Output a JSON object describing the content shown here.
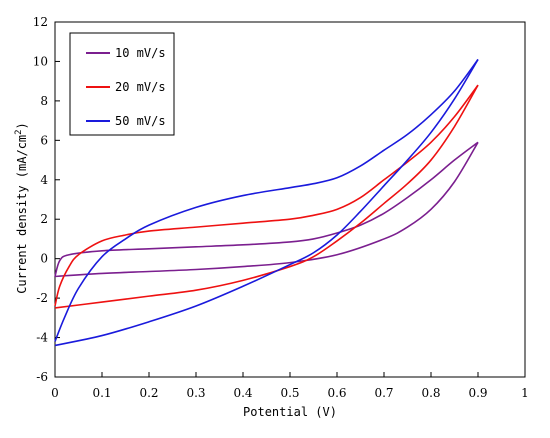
{
  "chart_data": {
    "type": "line",
    "title": "",
    "xlabel": "Potential (V)",
    "ylabel": "Current density (mA/cm",
    "ylabel_sup": "2",
    "ylabel_end": ")",
    "xlim": [
      0,
      1
    ],
    "ylim": [
      -6,
      12
    ],
    "xticks": [
      "0",
      "0.1",
      "0.2",
      "0.3",
      "0.4",
      "0.5",
      "0.6",
      "0.7",
      "0.8",
      "0.9",
      "1"
    ],
    "yticks": [
      "-6",
      "-4",
      "-2",
      "0",
      "2",
      "4",
      "6",
      "8",
      "10",
      "12"
    ],
    "grid": false,
    "legend_position": "top-left",
    "series": [
      {
        "name": "10 mV/s",
        "color": "#7b1f8f",
        "upper": [
          [
            0,
            -0.9
          ],
          [
            0.01,
            -0.1
          ],
          [
            0.03,
            0.2
          ],
          [
            0.1,
            0.4
          ],
          [
            0.2,
            0.5
          ],
          [
            0.3,
            0.6
          ],
          [
            0.4,
            0.7
          ],
          [
            0.5,
            0.85
          ],
          [
            0.55,
            1.0
          ],
          [
            0.6,
            1.3
          ],
          [
            0.65,
            1.7
          ],
          [
            0.7,
            2.3
          ],
          [
            0.75,
            3.1
          ],
          [
            0.8,
            4.0
          ],
          [
            0.85,
            5.0
          ],
          [
            0.9,
            5.9
          ]
        ],
        "lower": [
          [
            0,
            -0.9
          ],
          [
            0.1,
            -0.75
          ],
          [
            0.2,
            -0.65
          ],
          [
            0.3,
            -0.55
          ],
          [
            0.4,
            -0.4
          ],
          [
            0.5,
            -0.2
          ],
          [
            0.6,
            0.2
          ],
          [
            0.7,
            1.0
          ],
          [
            0.75,
            1.6
          ],
          [
            0.8,
            2.5
          ],
          [
            0.85,
            3.9
          ],
          [
            0.9,
            5.9
          ]
        ]
      },
      {
        "name": "20 mV/s",
        "color": "#ee1111",
        "upper": [
          [
            0,
            -2.4
          ],
          [
            0.01,
            -1.4
          ],
          [
            0.03,
            -0.4
          ],
          [
            0.05,
            0.2
          ],
          [
            0.1,
            0.9
          ],
          [
            0.15,
            1.2
          ],
          [
            0.2,
            1.4
          ],
          [
            0.3,
            1.6
          ],
          [
            0.4,
            1.8
          ],
          [
            0.5,
            2.0
          ],
          [
            0.55,
            2.2
          ],
          [
            0.6,
            2.5
          ],
          [
            0.65,
            3.1
          ],
          [
            0.7,
            4.0
          ],
          [
            0.75,
            4.9
          ],
          [
            0.8,
            5.9
          ],
          [
            0.85,
            7.2
          ],
          [
            0.9,
            8.8
          ]
        ],
        "lower": [
          [
            0,
            -2.5
          ],
          [
            0.1,
            -2.2
          ],
          [
            0.2,
            -1.9
          ],
          [
            0.3,
            -1.6
          ],
          [
            0.4,
            -1.1
          ],
          [
            0.5,
            -0.4
          ],
          [
            0.55,
            0.1
          ],
          [
            0.6,
            0.9
          ],
          [
            0.65,
            1.8
          ],
          [
            0.7,
            2.8
          ],
          [
            0.75,
            3.8
          ],
          [
            0.8,
            5.0
          ],
          [
            0.85,
            6.7
          ],
          [
            0.9,
            8.8
          ]
        ]
      },
      {
        "name": "50 mV/s",
        "color": "#1a1adc",
        "upper": [
          [
            0,
            -4.2
          ],
          [
            0.02,
            -3.0
          ],
          [
            0.05,
            -1.5
          ],
          [
            0.1,
            0.1
          ],
          [
            0.15,
            1.0
          ],
          [
            0.2,
            1.7
          ],
          [
            0.3,
            2.6
          ],
          [
            0.4,
            3.2
          ],
          [
            0.5,
            3.6
          ],
          [
            0.55,
            3.8
          ],
          [
            0.6,
            4.1
          ],
          [
            0.65,
            4.7
          ],
          [
            0.7,
            5.5
          ],
          [
            0.75,
            6.3
          ],
          [
            0.8,
            7.3
          ],
          [
            0.85,
            8.5
          ],
          [
            0.9,
            10.1
          ]
        ],
        "lower": [
          [
            0,
            -4.4
          ],
          [
            0.1,
            -3.9
          ],
          [
            0.2,
            -3.2
          ],
          [
            0.3,
            -2.4
          ],
          [
            0.4,
            -1.4
          ],
          [
            0.5,
            -0.3
          ],
          [
            0.55,
            0.3
          ],
          [
            0.6,
            1.2
          ],
          [
            0.65,
            2.4
          ],
          [
            0.7,
            3.7
          ],
          [
            0.75,
            5.0
          ],
          [
            0.8,
            6.4
          ],
          [
            0.85,
            8.1
          ],
          [
            0.9,
            10.1
          ]
        ]
      }
    ]
  }
}
